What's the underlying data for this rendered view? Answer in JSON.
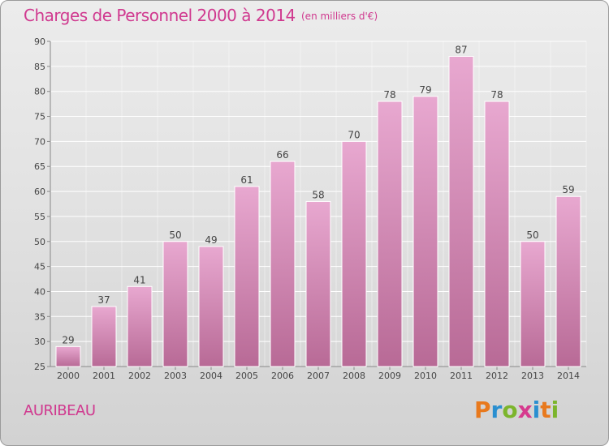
{
  "header": {
    "title": "Charges de Personnel 2000 à 2014",
    "subtitle": "(en milliers d'€)"
  },
  "footer": {
    "commune": "AURIBEAU",
    "logo_text": "Proxiti"
  },
  "colors": {
    "accent": "#d0398f",
    "bar_light": "#e8a8d0",
    "bar_dark": "#b86a96",
    "grid": "#ffffff"
  },
  "chart_data": {
    "type": "bar",
    "title": "Charges de Personnel 2000 à 2014",
    "subtitle": "(en milliers d'€)",
    "categories": [
      "2000",
      "2001",
      "2002",
      "2003",
      "2004",
      "2005",
      "2006",
      "2007",
      "2008",
      "2009",
      "2010",
      "2011",
      "2012",
      "2013",
      "2014"
    ],
    "values": [
      29,
      37,
      41,
      50,
      49,
      61,
      66,
      58,
      70,
      78,
      79,
      87,
      78,
      50,
      59
    ],
    "ylim": [
      25,
      90
    ],
    "yticks": [
      25,
      30,
      35,
      40,
      45,
      50,
      55,
      60,
      65,
      70,
      75,
      80,
      85,
      90
    ],
    "grid": true,
    "data_labels": true,
    "xlabel": "",
    "ylabel": ""
  }
}
